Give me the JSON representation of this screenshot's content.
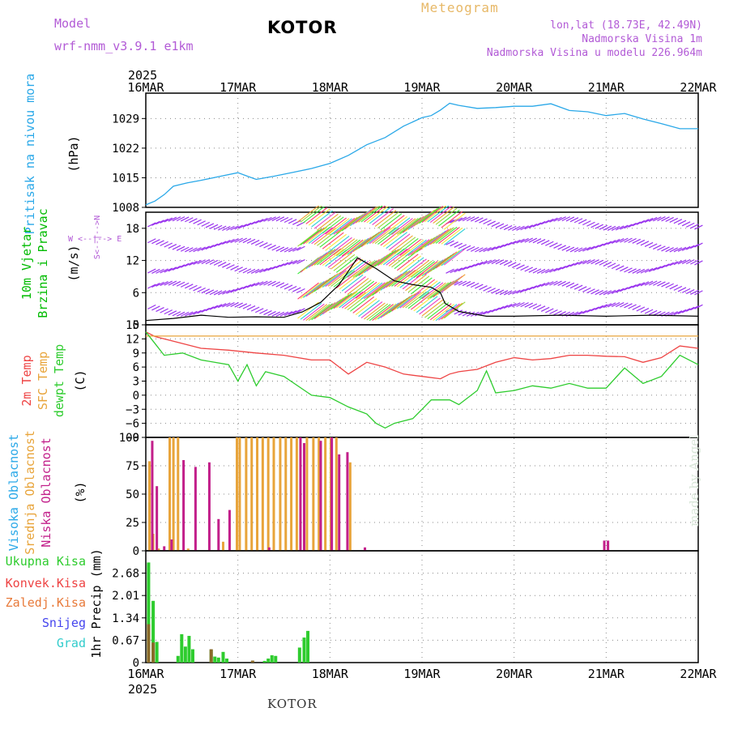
{
  "header": {
    "model_label": "Model",
    "model_name": "wrf-nmm_v3.9.1 e1km",
    "title": "KOTOR",
    "product": "Meteogram",
    "coords": "lon,lat (18.73E, 42.49N)",
    "elevation": "Nadmorska Visina 1m",
    "model_elevation": "Nadmorska Visina u modelu 226.964m",
    "footer": "KOTOR",
    "credit": "made by Angel",
    "year": "2025"
  },
  "colors": {
    "pressure": "#2aa8e8",
    "temp2m": "#ee4444",
    "sfc_temp": "#e8a43a",
    "dewpoint": "#2ecc2e",
    "high_cloud": "#2aa8e8",
    "mid_cloud": "#e8a43a",
    "low_cloud": "#c21f8a",
    "total_precip": "#2ecc2e",
    "conv_precip": "#ee4444",
    "frozen_precip": "#e87a3a",
    "snow": "#4444ee",
    "graupel": "#33cccc",
    "wind_calm": "#9933ee",
    "wind_label": "#00bb00",
    "ylabel_purple": "#b25ad6"
  },
  "chart_data": [
    {
      "type": "line",
      "id": "pressure",
      "ylabel": "(hPa)",
      "side_labels": [
        "Pritisak na nivou mora"
      ],
      "x_ticks": [
        "16MAR",
        "17MAR",
        "18MAR",
        "19MAR",
        "20MAR",
        "21MAR",
        "22MAR"
      ],
      "ylim": [
        1008,
        1035
      ],
      "y_ticks": [
        1008,
        1015,
        1022,
        1029
      ],
      "grid": true,
      "series": [
        {
          "x": [
            0,
            0.1,
            0.2,
            0.3,
            0.45,
            0.6,
            0.8,
            1.0,
            1.1,
            1.2,
            1.4,
            1.6,
            1.8,
            2.0,
            2.2,
            2.4,
            2.6,
            2.8,
            3.0,
            3.1,
            3.2,
            3.3,
            3.4,
            3.6,
            3.8,
            4.0,
            4.2,
            4.4,
            4.6,
            4.8,
            5.0,
            5.2,
            5.4,
            5.6,
            5.8,
            6.0
          ],
          "y": [
            1008.6,
            1009.5,
            1011,
            1013,
            1013.8,
            1014.4,
            1015.3,
            1016.2,
            1015.4,
            1014.6,
            1015.4,
            1016.3,
            1017.2,
            1018.4,
            1020.3,
            1022.8,
            1024.5,
            1027.2,
            1029.2,
            1029.7,
            1031,
            1032.6,
            1032.1,
            1031.4,
            1031.6,
            1031.9,
            1031.9,
            1032.5,
            1030.9,
            1030.6,
            1029.7,
            1030.2,
            1028.9,
            1027.8,
            1026.6,
            1026.6
          ]
        }
      ]
    },
    {
      "type": "scatter",
      "id": "wind",
      "ylabel": "(m/s)",
      "side_labels": [
        "10m Vjetar",
        "Brzina i Pravac"
      ],
      "compass": "W <--|--> E",
      "compass_ns": "S<--|-->N",
      "ylim": [
        0,
        21
      ],
      "y_ticks": [
        0,
        6,
        12,
        18
      ],
      "rows_ms": [
        2.5,
        6.5,
        10.5,
        14.5,
        18.5
      ],
      "barb_band_days": [
        1.65,
        3.25
      ],
      "speed_series": {
        "x": [
          0,
          0.3,
          0.6,
          0.9,
          1.2,
          1.5,
          1.7,
          1.9,
          2.1,
          2.3,
          2.5,
          2.7,
          2.9,
          3.1,
          3.2,
          3.25,
          3.4,
          3.7,
          4.0,
          4.5,
          5.0,
          5.5,
          6.0
        ],
        "y": [
          0.8,
          1.2,
          1.8,
          1.4,
          1.5,
          1.4,
          2.4,
          4.2,
          7.5,
          12.5,
          10.5,
          8.2,
          7.5,
          7,
          6,
          4,
          2.5,
          1.6,
          1.6,
          1.8,
          1.6,
          1.8,
          1.6
        ]
      }
    },
    {
      "type": "line",
      "id": "temperature",
      "ylabel": "(C)",
      "side_labels": [
        "2m Temp",
        "SFC Temp",
        "dewpt Temp"
      ],
      "ylim": [
        -9,
        15
      ],
      "y_ticks": [
        -9,
        -6,
        -3,
        0,
        3,
        6,
        9,
        12,
        15
      ],
      "y_tick_labels": [
        "−9",
        "−6",
        "−3",
        "0",
        "3",
        "6",
        "9",
        "12",
        "15"
      ],
      "grid": true,
      "series": [
        {
          "name": "2m Temp",
          "x": [
            0,
            0.1,
            0.3,
            0.6,
            0.9,
            1.2,
            1.5,
            1.8,
            2.0,
            2.1,
            2.2,
            2.4,
            2.5,
            2.6,
            2.8,
            3.0,
            3.2,
            3.3,
            3.4,
            3.6,
            3.8,
            4.0,
            4.2,
            4.4,
            4.6,
            4.8,
            5.0,
            5.2,
            5.4,
            5.6,
            5.8,
            6.0
          ],
          "y": [
            13.5,
            12.5,
            11.5,
            10,
            9.6,
            9,
            8.5,
            7.5,
            7.5,
            6,
            4.5,
            7,
            6.5,
            6,
            4.5,
            4,
            3.5,
            4.5,
            5,
            5.5,
            7,
            8,
            7.5,
            7.8,
            8.5,
            8.5,
            8.3,
            8.2,
            7,
            8,
            10.5,
            10
          ]
        },
        {
          "name": "SFC Temp",
          "x": [
            0,
            6
          ],
          "y": [
            12.6,
            12.6
          ]
        },
        {
          "name": "dewpt Temp",
          "x": [
            0,
            0.1,
            0.2,
            0.4,
            0.6,
            0.9,
            1.0,
            1.1,
            1.2,
            1.3,
            1.5,
            1.8,
            2.0,
            2.2,
            2.4,
            2.5,
            2.6,
            2.7,
            2.9,
            3.0,
            3.1,
            3.3,
            3.4,
            3.6,
            3.7,
            3.8,
            4.0,
            4.2,
            4.4,
            4.6,
            4.8,
            5.0,
            5.2,
            5.4,
            5.6,
            5.8,
            6.0
          ],
          "y": [
            13.5,
            11,
            8.5,
            9,
            7.5,
            6.5,
            3,
            6.5,
            2,
            5,
            4,
            0,
            -0.5,
            -2.5,
            -4,
            -6,
            -7,
            -6,
            -5,
            -3,
            -1,
            -1,
            -2,
            1,
            5.2,
            0.5,
            1,
            2,
            1.5,
            2.5,
            1.5,
            1.5,
            5.8,
            2.5,
            4,
            8.5,
            6.5
          ]
        }
      ]
    },
    {
      "type": "bar",
      "id": "clouds",
      "ylabel": "(%)",
      "side_labels": [
        "Visoka Oblacnost",
        "Srednja Oblacnost",
        "Niska Oblacnost"
      ],
      "ylim": [
        0,
        100
      ],
      "y_ticks": [
        0,
        25,
        50,
        75,
        100
      ],
      "grid": true,
      "series": [
        {
          "name": "Srednja Oblacnost",
          "x": [
            0.04,
            0.08,
            0.14,
            0.26,
            0.3,
            0.35,
            0.46,
            0.84,
            0.99,
            1.02,
            1.09,
            1.15,
            1.21,
            1.27,
            1.33,
            1.39,
            1.46,
            1.52,
            1.58,
            1.64,
            1.75,
            1.82,
            1.88,
            1.95,
            2.01,
            2.07,
            2.22
          ],
          "y": [
            79,
            15,
            2,
            100,
            100,
            100,
            2,
            8,
            100,
            100,
            100,
            100,
            100,
            100,
            100,
            100,
            100,
            100,
            100,
            100,
            100,
            100,
            100,
            100,
            100,
            100,
            78
          ]
        },
        {
          "name": "Niska Oblacnost",
          "x": [
            0.07,
            0.12,
            0.2,
            0.28,
            0.41,
            0.54,
            0.69,
            0.79,
            0.91,
            1.34,
            1.68,
            1.72,
            1.9,
            2.02,
            2.1,
            2.19,
            2.38,
            4.98,
            5.02
          ],
          "y": [
            97,
            57,
            4,
            10,
            80,
            74,
            78,
            28,
            36,
            3,
            100,
            95,
            97,
            100,
            85,
            87,
            3,
            9,
            9
          ]
        }
      ]
    },
    {
      "type": "bar",
      "id": "precip",
      "ylabel": "1hr Precip (mm)",
      "side_labels": [
        "Ukupna Kisa",
        "Konvek.Kisa",
        "Zaledj.Kisa",
        "Snijeg",
        "Grad"
      ],
      "ylim": [
        0,
        3.35
      ],
      "y_ticks": [
        0,
        0.67,
        1.34,
        2.01,
        2.68
      ],
      "y_tick_labels": [
        "0",
        "0.67",
        "1.34",
        "2.01",
        "2.68"
      ],
      "grid": true,
      "series": [
        {
          "name": "Ukupna Kisa",
          "x": [
            0.03,
            0.08,
            0.12,
            0.35,
            0.39,
            0.43,
            0.47,
            0.51,
            0.71,
            0.75,
            0.79,
            0.84,
            0.88,
            1.29,
            1.33,
            1.37,
            1.41,
            1.67,
            1.72,
            1.76
          ],
          "y": [
            3.0,
            1.85,
            0.62,
            0.2,
            0.85,
            0.48,
            0.8,
            0.4,
            0.38,
            0.18,
            0.15,
            0.32,
            0.12,
            0.05,
            0.12,
            0.22,
            0.2,
            0.45,
            0.75,
            0.95
          ]
        },
        {
          "name": "Zaledj.Kisa",
          "x": [
            0.03,
            0.08,
            0.71,
            1.16
          ],
          "y": [
            1.15,
            0.6,
            0.4,
            0.06
          ]
        }
      ]
    }
  ]
}
